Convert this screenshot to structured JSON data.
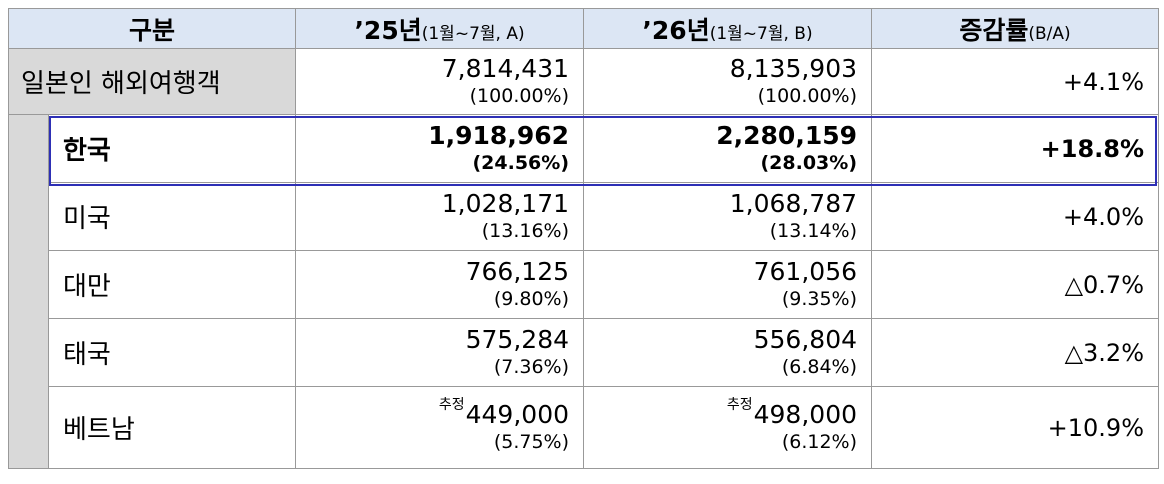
{
  "header": {
    "col_category": "구분",
    "col_2025_main": "’25년",
    "col_2025_sub": "(1월~7월,  A)",
    "col_2026_main": "’26년",
    "col_2026_sub": "(1월~7월,  B)",
    "col_rate_main": "증감률",
    "col_rate_sub": "(B/A)"
  },
  "total": {
    "label": "일본인 해외여행객",
    "y2025": "7,814,431",
    "y2025_pct": "(100.00%)",
    "y2026": "8,135,903",
    "y2026_pct": "(100.00%)",
    "rate": "+4.1%"
  },
  "rows": [
    {
      "label": "한국",
      "y2025": "1,918,962",
      "y2025_pct": "(24.56%)",
      "y2026": "2,280,159",
      "y2026_pct": "(28.03%)",
      "rate": "+18.8%",
      "highlight": true
    },
    {
      "label": "미국",
      "y2025": "1,028,171",
      "y2025_pct": "(13.16%)",
      "y2026": "1,068,787",
      "y2026_pct": "(13.14%)",
      "rate": "+4.0%"
    },
    {
      "label": "대만",
      "y2025": "766,125",
      "y2025_pct": "(9.80%)",
      "y2026": "761,056",
      "y2026_pct": "(9.35%)",
      "rate": "△0.7%"
    },
    {
      "label": "태국",
      "y2025": "575,284",
      "y2025_pct": "(7.36%)",
      "y2026": "556,804",
      "y2026_pct": "(6.84%)",
      "rate": "△3.2%"
    },
    {
      "label": "베트남",
      "y2025_note": "추정",
      "y2025": "449,000",
      "y2025_pct": "(5.75%)",
      "y2026_note": "추정",
      "y2026": "498,000",
      "y2026_pct": "(6.12%)",
      "rate": "+10.9%"
    }
  ],
  "colors": {
    "header_bg": "#dce6f4",
    "label_bg": "#d9d9d9",
    "highlight_border": "#2d2fb5"
  }
}
